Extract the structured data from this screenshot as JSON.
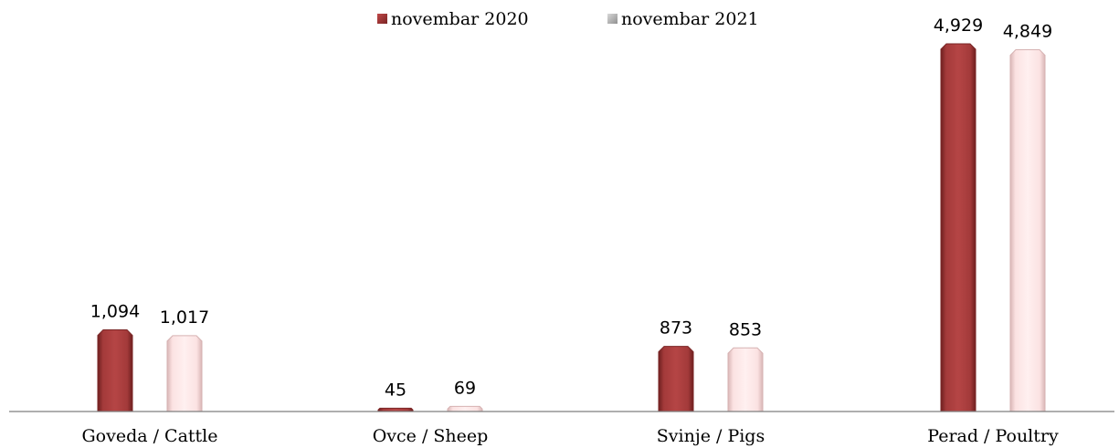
{
  "chart_data": {
    "type": "bar",
    "categories": [
      "Goveda / Cattle",
      "Ovce / Sheep",
      "Svinje / Pigs",
      "Perad / Poultry"
    ],
    "series": [
      {
        "name": "novembar 2020",
        "values": [
          1094,
          45,
          873,
          4929
        ],
        "labels": [
          "1,094",
          "45",
          "873",
          "4,929"
        ],
        "color": "#a33a3a"
      },
      {
        "name": "novembar 2021",
        "values": [
          1017,
          69,
          853,
          4849
        ],
        "labels": [
          "1,017",
          "69",
          "853",
          "4,849"
        ],
        "color": "#fce4e4"
      }
    ],
    "legend_position": "top-center",
    "grid": false,
    "ylim": [
      0,
      4929
    ]
  }
}
